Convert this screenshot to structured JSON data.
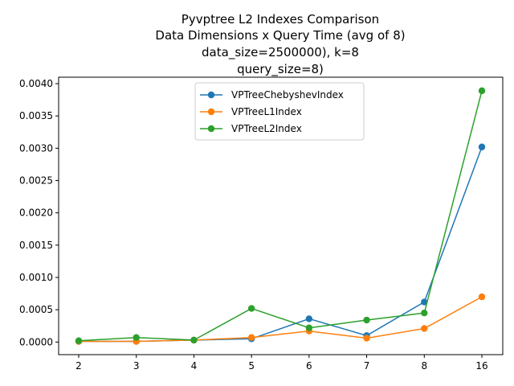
{
  "chart_data": {
    "type": "line",
    "title_lines": [
      "Pyvptree L2 Indexes Comparison",
      "Data Dimensions x Query Time (avg of 8)",
      "data_size=2500000), k=8",
      "query_size=8)"
    ],
    "xlabel": "",
    "ylabel": "",
    "categories": [
      "2",
      "3",
      "4",
      "5",
      "6",
      "7",
      "8",
      "16"
    ],
    "ylim": [
      -0.000195,
      0.0041
    ],
    "yticks": [
      0.0,
      0.0005,
      0.001,
      0.0015,
      0.002,
      0.0025,
      0.003,
      0.0035,
      0.004
    ],
    "ytick_labels": [
      "0.0000",
      "0.0005",
      "0.0010",
      "0.0015",
      "0.0020",
      "0.0025",
      "0.0030",
      "0.0035",
      "0.0040"
    ],
    "grid": false,
    "legend_position": "upper center",
    "series": [
      {
        "name": "VPTreeChebyshevIndex",
        "color": "#1f77b4",
        "values": [
          1e-05,
          1e-05,
          3e-05,
          5e-05,
          0.00036,
          0.0001,
          0.00062,
          0.00302
        ]
      },
      {
        "name": "VPTreeL1Index",
        "color": "#ff7f0e",
        "values": [
          1e-05,
          1e-05,
          3e-05,
          7e-05,
          0.00017,
          6e-05,
          0.00021,
          0.0007
        ]
      },
      {
        "name": "VPTreeL2Index",
        "color": "#2ca02c",
        "values": [
          2e-05,
          7e-05,
          3e-05,
          0.00052,
          0.00022,
          0.00034,
          0.00045,
          0.00389
        ]
      }
    ]
  }
}
